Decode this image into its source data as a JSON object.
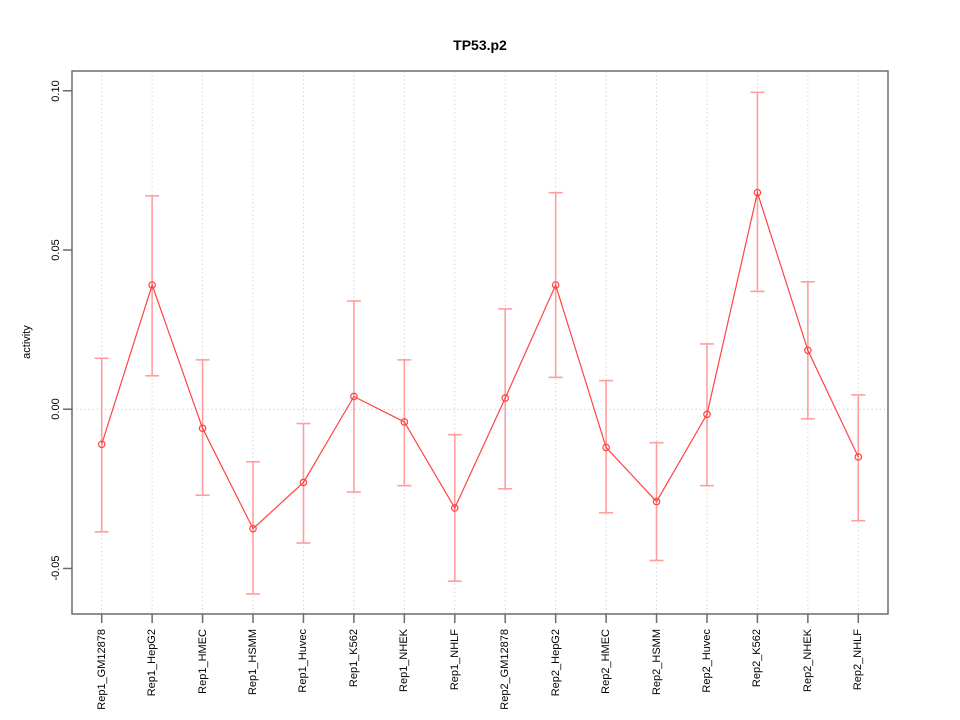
{
  "window": {
    "background": "#ffffff"
  },
  "chart_data": {
    "type": "line",
    "title": "TP53.p2",
    "xlabel": "",
    "ylabel": "activity",
    "categories": [
      "Rep1_GM12878",
      "Rep1_HepG2",
      "Rep1_HMEC",
      "Rep1_HSMM",
      "Rep1_Huvec",
      "Rep1_K562",
      "Rep1_NHEK",
      "Rep1_NHLF",
      "Rep2_GM12878",
      "Rep2_HepG2",
      "Rep2_HMEC",
      "Rep2_HSMM",
      "Rep2_Huvec",
      "Rep2_K562",
      "Rep2_NHEK",
      "Rep2_NHLF"
    ],
    "series": [
      {
        "name": "activity",
        "values": [
          -0.011,
          0.039,
          -0.006,
          -0.0375,
          -0.023,
          0.004,
          -0.004,
          -0.031,
          0.0035,
          0.039,
          -0.012,
          -0.029,
          -0.0016,
          0.068,
          0.0185,
          -0.015
        ],
        "error_high": [
          0.016,
          0.067,
          0.0155,
          -0.0165,
          -0.0045,
          0.034,
          0.0155,
          -0.008,
          0.0315,
          0.068,
          0.009,
          -0.0105,
          0.0205,
          0.0995,
          0.04,
          0.0045
        ],
        "error_low": [
          -0.0385,
          0.0105,
          -0.027,
          -0.058,
          -0.042,
          -0.026,
          -0.024,
          -0.054,
          -0.025,
          0.01,
          -0.0325,
          -0.0475,
          -0.024,
          0.037,
          -0.003,
          -0.035
        ]
      }
    ],
    "ylim": [
      -0.0643,
      0.1062
    ],
    "yticks": {
      "values": [
        0.1,
        0.05,
        0.0,
        -0.05
      ],
      "labels": [
        "0.10",
        "0.05",
        "0.00",
        "-0.05"
      ]
    },
    "grid": {
      "vertical": "dotted line at each category",
      "horizontal": "dotted line at y=0 only"
    },
    "legend": "none",
    "point_style": "open-circle",
    "colors": {
      "series_line": "#ff4343",
      "error_bar": "#ff9e9e",
      "point_stroke": "#ff4343",
      "grid_line": "#d4d4d4",
      "frame": "#6b6b6b",
      "text": "#000000"
    }
  }
}
